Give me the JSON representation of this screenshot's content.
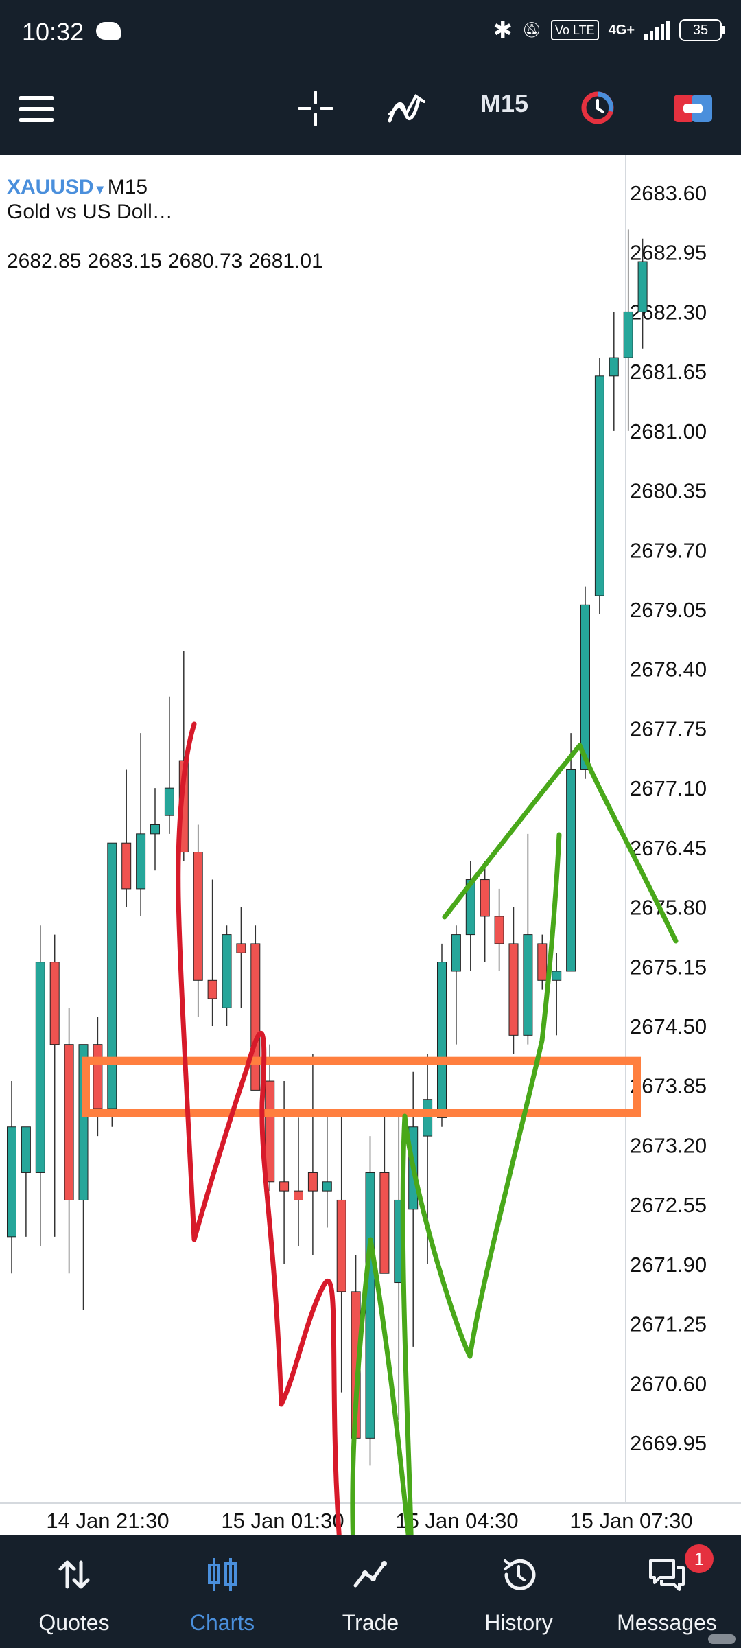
{
  "status_bar": {
    "time": "10:32",
    "network": "4G+",
    "volte": "Vo LTE",
    "battery": "35"
  },
  "toolbar": {
    "timeframe": "M15",
    "icons": [
      "menu-icon",
      "crosshair-icon",
      "indicators-icon",
      "timeframe",
      "clock-icon",
      "account-icon"
    ]
  },
  "symbol": {
    "name": "XAUUSD",
    "arrow": "▾",
    "timeframe": "M15",
    "description": "Gold vs US Doll…",
    "ohlc": [
      "2682.85",
      "2683.15",
      "2680.73",
      "2681.01"
    ]
  },
  "chart_data": {
    "type": "candlestick",
    "title": "XAUUSD M15",
    "ylim": [
      2669.4,
      2683.9
    ],
    "y_ticks": [
      "2683.60",
      "2682.95",
      "2682.30",
      "2681.65",
      "2681.00",
      "2680.35",
      "2679.70",
      "2679.05",
      "2678.40",
      "2677.75",
      "2677.10",
      "2676.45",
      "2675.80",
      "2675.15",
      "2674.50",
      "2673.85",
      "2673.20",
      "2672.55",
      "2671.90",
      "2671.25",
      "2670.60",
      "2669.95"
    ],
    "x_ticks": [
      "14 Jan 21:30",
      "15 Jan 01:30",
      "15 Jan 04:30",
      "15 Jan 07:30"
    ],
    "candles": [
      {
        "o": 2672.2,
        "h": 2673.9,
        "l": 2671.8,
        "c": 2673.4
      },
      {
        "o": 2672.9,
        "h": 2673.4,
        "l": 2672.2,
        "c": 2673.4
      },
      {
        "o": 2672.9,
        "h": 2675.6,
        "l": 2672.1,
        "c": 2675.2
      },
      {
        "o": 2675.2,
        "h": 2675.5,
        "l": 2672.2,
        "c": 2674.3
      },
      {
        "o": 2674.3,
        "h": 2674.7,
        "l": 2671.8,
        "c": 2672.6
      },
      {
        "o": 2672.6,
        "h": 2674.3,
        "l": 2671.4,
        "c": 2674.3
      },
      {
        "o": 2674.3,
        "h": 2674.6,
        "l": 2673.3,
        "c": 2673.6
      },
      {
        "o": 2673.6,
        "h": 2676.5,
        "l": 2673.4,
        "c": 2676.5
      },
      {
        "o": 2676.5,
        "h": 2677.3,
        "l": 2675.8,
        "c": 2676.0
      },
      {
        "o": 2676.0,
        "h": 2677.7,
        "l": 2675.7,
        "c": 2676.6
      },
      {
        "o": 2676.6,
        "h": 2677.1,
        "l": 2676.2,
        "c": 2676.7
      },
      {
        "o": 2676.8,
        "h": 2678.1,
        "l": 2676.6,
        "c": 2677.1
      },
      {
        "o": 2677.4,
        "h": 2678.6,
        "l": 2676.3,
        "c": 2676.4
      },
      {
        "o": 2676.4,
        "h": 2676.7,
        "l": 2674.6,
        "c": 2675.0
      },
      {
        "o": 2675.0,
        "h": 2676.1,
        "l": 2674.5,
        "c": 2674.8
      },
      {
        "o": 2674.7,
        "h": 2675.6,
        "l": 2674.5,
        "c": 2675.5
      },
      {
        "o": 2675.4,
        "h": 2675.8,
        "l": 2674.7,
        "c": 2675.3
      },
      {
        "o": 2675.4,
        "h": 2675.6,
        "l": 2673.8,
        "c": 2673.8
      },
      {
        "o": 2673.9,
        "h": 2674.3,
        "l": 2672.7,
        "c": 2672.8
      },
      {
        "o": 2672.8,
        "h": 2673.9,
        "l": 2671.9,
        "c": 2672.7
      },
      {
        "o": 2672.7,
        "h": 2673.5,
        "l": 2672.1,
        "c": 2672.6
      },
      {
        "o": 2672.9,
        "h": 2674.2,
        "l": 2672.0,
        "c": 2672.7
      },
      {
        "o": 2672.7,
        "h": 2673.6,
        "l": 2672.3,
        "c": 2672.8
      },
      {
        "o": 2672.6,
        "h": 2673.6,
        "l": 2670.5,
        "c": 2671.6
      },
      {
        "o": 2671.6,
        "h": 2672.0,
        "l": 2670.0,
        "c": 2670.0
      },
      {
        "o": 2670.0,
        "h": 2673.3,
        "l": 2669.7,
        "c": 2672.9
      },
      {
        "o": 2672.9,
        "h": 2673.6,
        "l": 2671.8,
        "c": 2671.8
      },
      {
        "o": 2671.7,
        "h": 2673.6,
        "l": 2670.2,
        "c": 2672.6
      },
      {
        "o": 2672.5,
        "h": 2674.0,
        "l": 2671.0,
        "c": 2673.4
      },
      {
        "o": 2673.3,
        "h": 2674.2,
        "l": 2671.9,
        "c": 2673.7
      },
      {
        "o": 2673.5,
        "h": 2675.4,
        "l": 2673.4,
        "c": 2675.2
      },
      {
        "o": 2675.1,
        "h": 2675.6,
        "l": 2674.3,
        "c": 2675.5
      },
      {
        "o": 2675.5,
        "h": 2676.3,
        "l": 2675.1,
        "c": 2676.1
      },
      {
        "o": 2676.1,
        "h": 2676.3,
        "l": 2675.2,
        "c": 2675.7
      },
      {
        "o": 2675.7,
        "h": 2676.0,
        "l": 2675.1,
        "c": 2675.4
      },
      {
        "o": 2675.4,
        "h": 2675.8,
        "l": 2674.2,
        "c": 2674.4
      },
      {
        "o": 2674.4,
        "h": 2676.6,
        "l": 2674.3,
        "c": 2675.5
      },
      {
        "o": 2675.4,
        "h": 2675.5,
        "l": 2674.9,
        "c": 2675.0
      },
      {
        "o": 2675.0,
        "h": 2675.3,
        "l": 2674.4,
        "c": 2675.1
      },
      {
        "o": 2675.1,
        "h": 2677.7,
        "l": 2675.1,
        "c": 2677.3
      },
      {
        "o": 2677.3,
        "h": 2679.3,
        "l": 2677.2,
        "c": 2679.1
      },
      {
        "o": 2679.2,
        "h": 2681.8,
        "l": 2679.0,
        "c": 2681.6
      },
      {
        "o": 2681.6,
        "h": 2682.3,
        "l": 2681.0,
        "c": 2681.8
      },
      {
        "o": 2681.8,
        "h": 2683.2,
        "l": 2681.0,
        "c": 2682.3
      },
      {
        "o": 2682.3,
        "h": 2683.1,
        "l": 2681.9,
        "c": 2682.85
      }
    ],
    "colors": {
      "up": "#26a69a",
      "down": "#ef5350",
      "grid": "#e8ebef",
      "zone": "#ff7f3f",
      "red_drawing": "#d71a2a",
      "green_drawing": "#49a81a"
    },
    "drawings": [
      "red freehand line",
      "green freehand line",
      "orange rectangle zone at 2673.85"
    ]
  },
  "bottom_nav": [
    {
      "label": "Quotes",
      "icon": "quotes-icon",
      "active": false
    },
    {
      "label": "Charts",
      "icon": "charts-icon",
      "active": true
    },
    {
      "label": "Trade",
      "icon": "trade-icon",
      "active": false
    },
    {
      "label": "History",
      "icon": "history-icon",
      "active": false
    },
    {
      "label": "Messages",
      "icon": "messages-icon",
      "active": false,
      "badge": "1"
    }
  ]
}
